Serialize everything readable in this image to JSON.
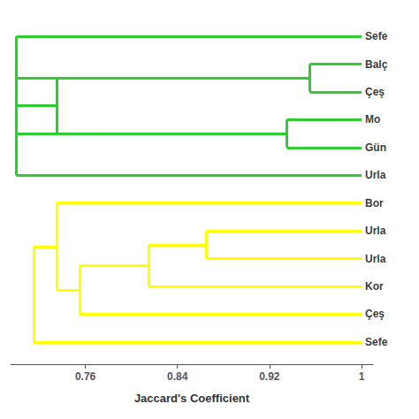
{
  "chart_data": {
    "type": "dendrogram",
    "xlabel": "Jaccard's Coefficient",
    "xlim": [
      0.695,
      1.01
    ],
    "ylim": [
      -0.8,
      11.8
    ],
    "xticks": [
      0.76,
      0.84,
      0.92,
      1
    ],
    "grid": false,
    "tick_labels": "x",
    "series": [
      {
        "color": "#2ecc2e",
        "labels": [
          "Sefe",
          "Balç",
          "Çeş",
          "Mo",
          "Gün",
          "Urla"
        ],
        "label_ys": [
          11,
          10,
          9,
          8,
          7,
          6
        ],
        "hlines": [
          {
            "y": 11,
            "x": [
              0.7,
              1.0
            ]
          },
          {
            "y": 10,
            "x": [
              0.955,
              1.0
            ]
          },
          {
            "y": 9,
            "x": [
              0.955,
              1.0
            ]
          },
          {
            "y": 9.5,
            "x": [
              0.735,
              0.955
            ]
          },
          {
            "y": 8,
            "x": [
              0.935,
              1.0
            ]
          },
          {
            "y": 7,
            "x": [
              0.935,
              1.0
            ]
          },
          {
            "y": 7.5,
            "x": [
              0.775,
              0.935
            ]
          },
          {
            "y": 8.5,
            "x": [
              0.7,
              0.735
            ]
          },
          {
            "y": 7.5,
            "x": [
              0.7,
              0.775
            ]
          },
          {
            "y": 9.5,
            "x": [
              0.7,
              0.735
            ]
          },
          {
            "y": 6,
            "x": [
              0.7,
              1.0
            ]
          }
        ],
        "vlines": [
          {
            "x": 0.955,
            "y": [
              9,
              10
            ]
          },
          {
            "x": 0.935,
            "y": [
              7,
              8
            ]
          },
          {
            "x": 0.735,
            "y": [
              7.5,
              9.5
            ]
          },
          {
            "x": 0.7,
            "y": [
              6,
              11
            ]
          }
        ]
      },
      {
        "color": "#ffff00",
        "labels": [
          "Bor",
          "Urla",
          "Urla",
          "Kor",
          "Çeş",
          "Sefe"
        ],
        "label_ys": [
          5,
          4,
          3,
          2,
          1,
          0
        ],
        "hlines": [
          {
            "y": 5,
            "x": [
              0.735,
              1.0
            ]
          },
          {
            "y": 4,
            "x": [
              0.865,
              1.0
            ]
          },
          {
            "y": 3,
            "x": [
              0.865,
              1.0
            ]
          },
          {
            "y": 3.5,
            "x": [
              0.815,
              0.865
            ]
          },
          {
            "y": 2,
            "x": [
              0.815,
              1.0
            ]
          },
          {
            "y": 2.75,
            "x": [
              0.755,
              0.815
            ]
          },
          {
            "y": 1,
            "x": [
              0.755,
              1.0
            ]
          },
          {
            "y": 1.875,
            "x": [
              0.735,
              0.755
            ]
          },
          {
            "y": 3.4375,
            "x": [
              0.715,
              0.735
            ]
          },
          {
            "y": 0,
            "x": [
              0.715,
              1.0
            ]
          }
        ],
        "vlines": [
          {
            "x": 0.865,
            "y": [
              3,
              4
            ]
          },
          {
            "x": 0.815,
            "y": [
              2,
              3.5
            ]
          },
          {
            "x": 0.755,
            "y": [
              1,
              2.75
            ]
          },
          {
            "x": 0.735,
            "y": [
              1.875,
              5
            ]
          },
          {
            "x": 0.715,
            "y": [
              0,
              3.4375
            ]
          }
        ]
      }
    ]
  }
}
